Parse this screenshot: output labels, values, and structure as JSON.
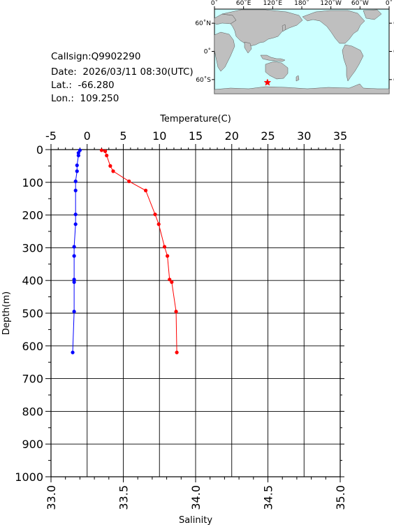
{
  "station": {
    "callsign": "Callsign:Q9902290",
    "date": "Date:  2026/03/11 08:30(UTC)",
    "lat": "Lat.:  -66.280",
    "lon": "Lon.:  109.250"
  },
  "map": {
    "lon_labels": [
      "0˚",
      "60˚E",
      "120˚E",
      "180˚",
      "120˚W",
      "60˚W",
      "0˚"
    ],
    "lat_labels": [
      "60˚N",
      "0˚",
      "60˚S"
    ],
    "marker": {
      "lon": 109.25,
      "lat": -66.28
    },
    "colors": {
      "ocean": "#ccffff",
      "land": "#bfbfbf",
      "marker": "#ff0000"
    }
  },
  "chart_data": {
    "type": "line",
    "title": "",
    "top_axis": {
      "label": "Temperature(C)",
      "range": [
        -5,
        35
      ],
      "ticks": [
        "-5",
        "0",
        "5",
        "10",
        "15",
        "20",
        "25",
        "30",
        "35"
      ]
    },
    "bottom_axis": {
      "label": "Salinity",
      "range": [
        33.0,
        35.0
      ],
      "ticks": [
        "33.0",
        "33.5",
        "34.0",
        "34.5",
        "35.0"
      ]
    },
    "left_axis": {
      "label": "Depth(m)",
      "range": [
        0,
        1000
      ],
      "inverted": true,
      "ticks": [
        "0",
        "100",
        "200",
        "300",
        "400",
        "500",
        "600",
        "700",
        "800",
        "900",
        "1000"
      ]
    },
    "grid": true,
    "series": [
      {
        "axis": "temperature",
        "color": "#ff0000",
        "points": [
          {
            "value": 2.0,
            "depth": 2
          },
          {
            "value": 2.5,
            "depth": 5
          },
          {
            "value": 2.7,
            "depth": 18
          },
          {
            "value": 3.2,
            "depth": 50
          },
          {
            "value": 3.6,
            "depth": 66
          },
          {
            "value": 5.8,
            "depth": 97
          },
          {
            "value": 8.1,
            "depth": 125
          },
          {
            "value": 9.4,
            "depth": 198
          },
          {
            "value": 9.9,
            "depth": 228
          },
          {
            "value": 10.7,
            "depth": 297
          },
          {
            "value": 11.1,
            "depth": 325
          },
          {
            "value": 11.4,
            "depth": 397
          },
          {
            "value": 11.7,
            "depth": 405
          },
          {
            "value": 12.3,
            "depth": 495
          },
          {
            "value": 12.4,
            "depth": 620
          }
        ]
      },
      {
        "axis": "salinity",
        "color": "#0000ff",
        "points": [
          {
            "value": 33.2,
            "depth": 2
          },
          {
            "value": 33.19,
            "depth": 10
          },
          {
            "value": 33.19,
            "depth": 18
          },
          {
            "value": 33.18,
            "depth": 48
          },
          {
            "value": 33.18,
            "depth": 66
          },
          {
            "value": 33.17,
            "depth": 97
          },
          {
            "value": 33.17,
            "depth": 125
          },
          {
            "value": 33.17,
            "depth": 198
          },
          {
            "value": 33.17,
            "depth": 228
          },
          {
            "value": 33.16,
            "depth": 297
          },
          {
            "value": 33.16,
            "depth": 325
          },
          {
            "value": 33.16,
            "depth": 397
          },
          {
            "value": 33.16,
            "depth": 405
          },
          {
            "value": 33.16,
            "depth": 495
          },
          {
            "value": 33.15,
            "depth": 620
          }
        ]
      }
    ]
  }
}
